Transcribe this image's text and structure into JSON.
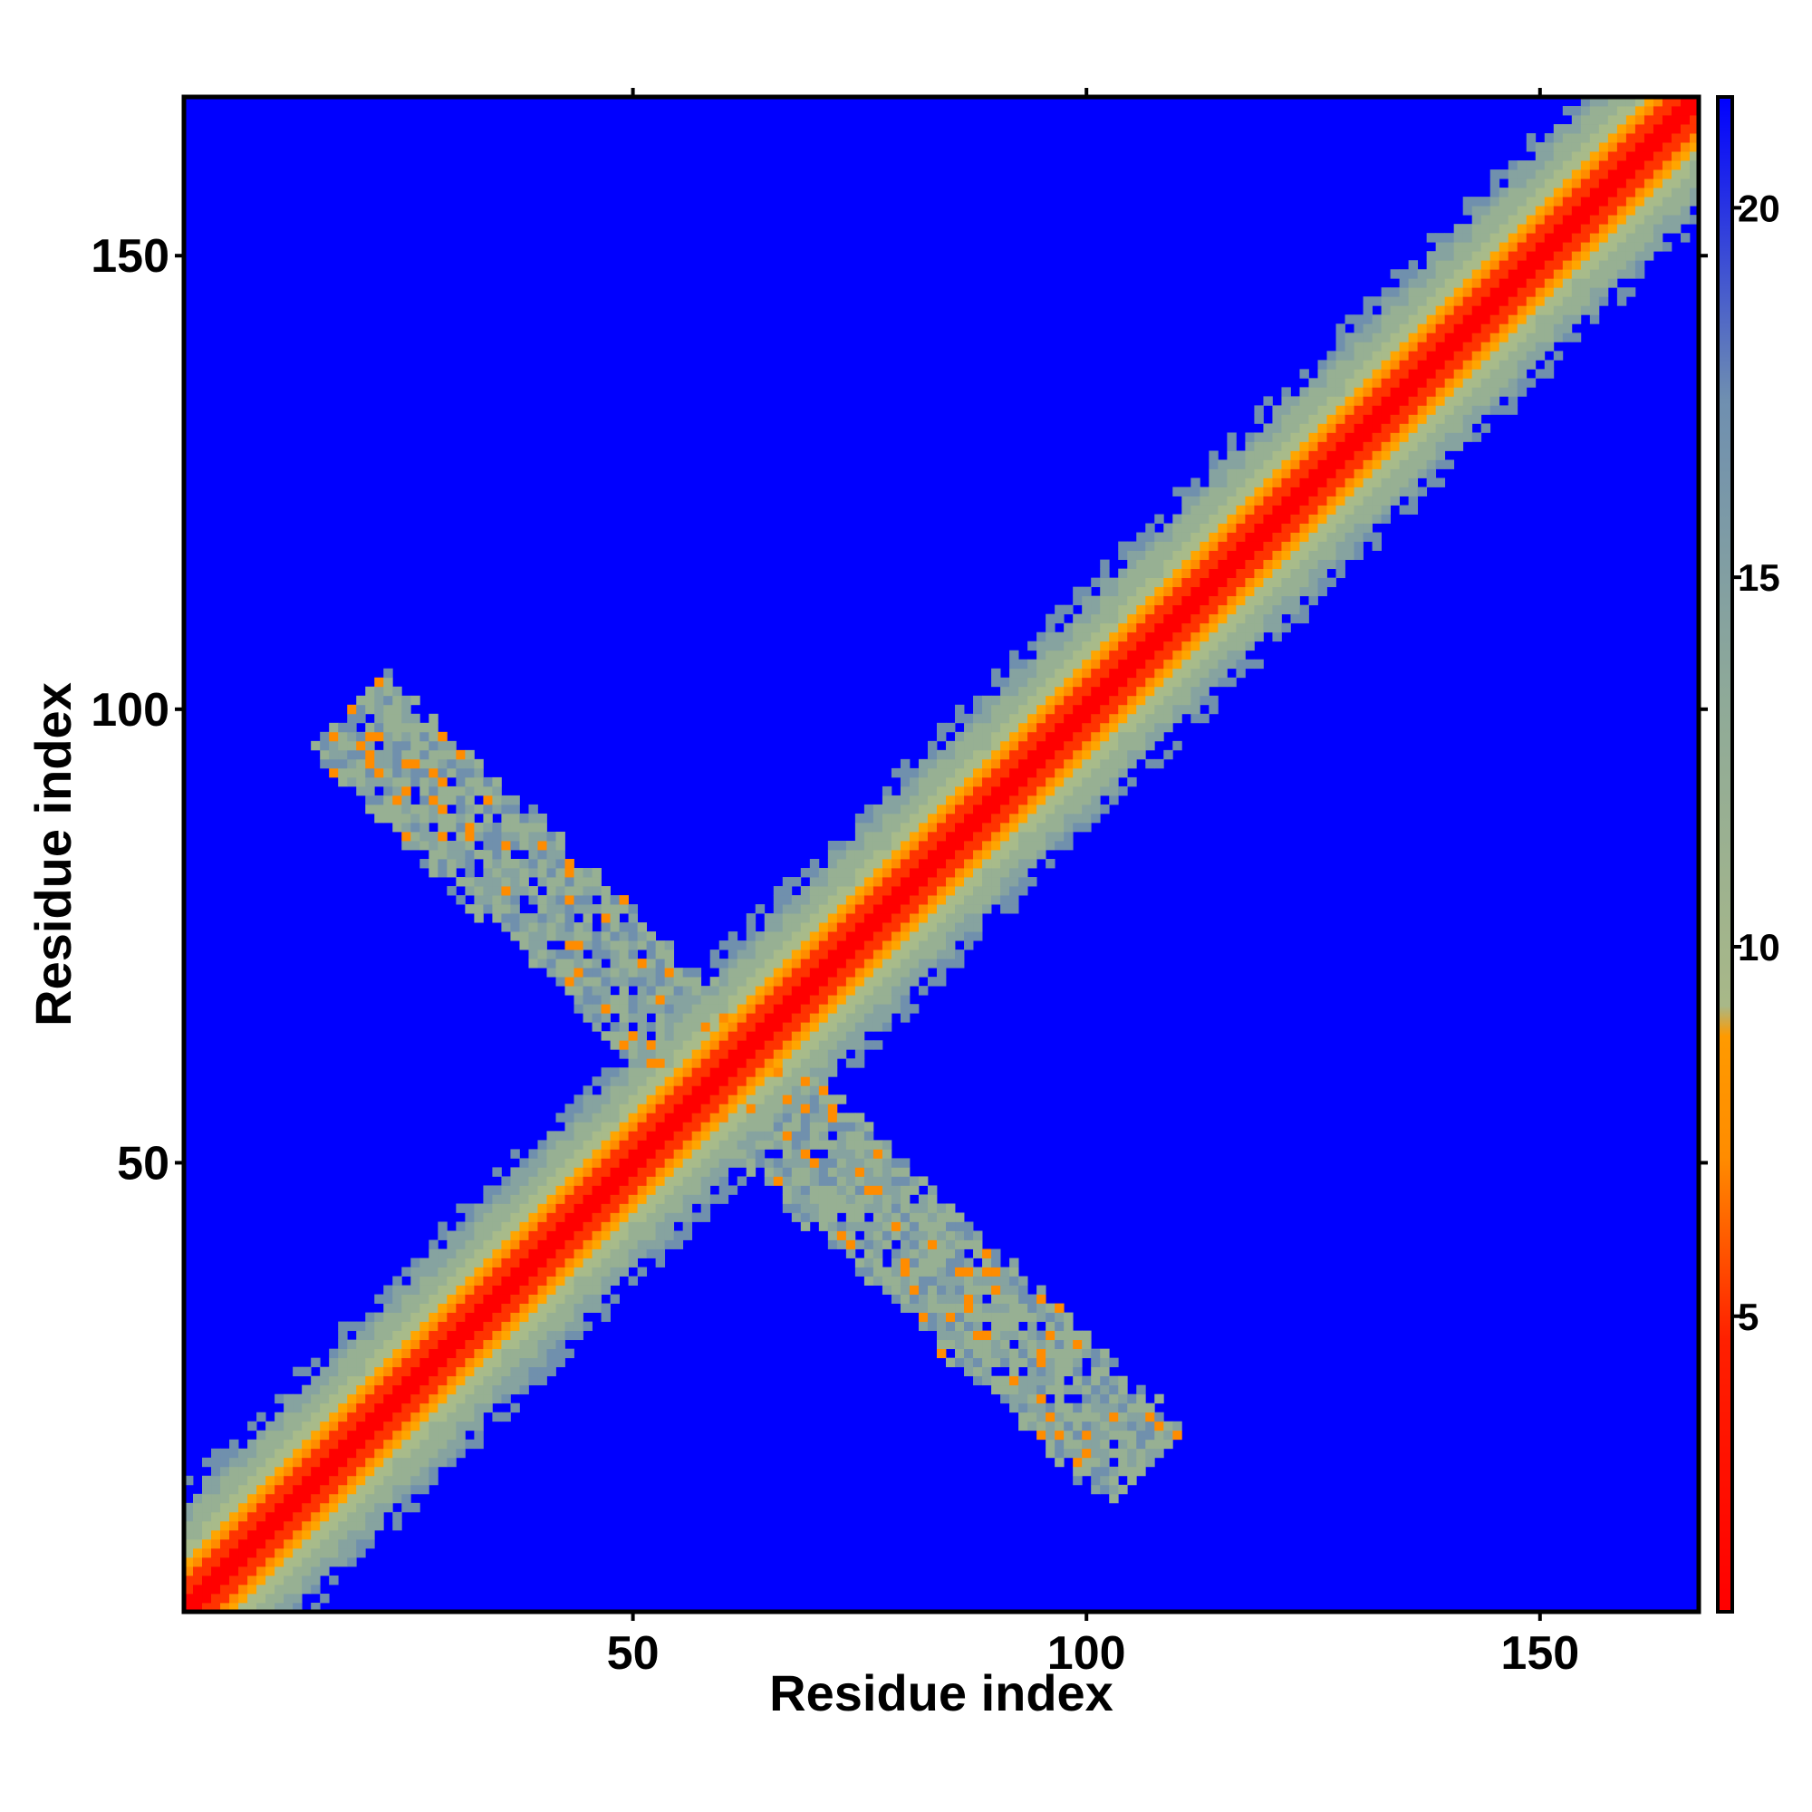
{
  "chart_data": {
    "type": "heatmap",
    "title": "",
    "xlabel": "Residue index",
    "ylabel": "Residue index",
    "xlim": [
      1,
      167
    ],
    "ylim": [
      1,
      167
    ],
    "x_ticks": [
      50,
      100,
      150
    ],
    "y_ticks": [
      50,
      100,
      150
    ],
    "grid": false,
    "n_residues": 167,
    "colorbar": {
      "range": [
        1,
        21.5
      ],
      "ticks": [
        5,
        10,
        15,
        20
      ],
      "colors": {
        "low": "#ff0000",
        "mid_low": "#ff8c00",
        "mid": "#9fb88f",
        "mid_high": "#6f8fb0",
        "high": "#0000ff"
      }
    },
    "features": [
      {
        "name": "main diagonal band",
        "from": [
          1,
          1
        ],
        "to": [
          167,
          167
        ],
        "value_at_center": 1,
        "value_at_edge": 12
      },
      {
        "name": "antiparallel off-diagonal band",
        "from": [
          20,
          98
        ],
        "to": [
          105,
          18
        ],
        "value_range": [
          4,
          14
        ]
      }
    ]
  }
}
